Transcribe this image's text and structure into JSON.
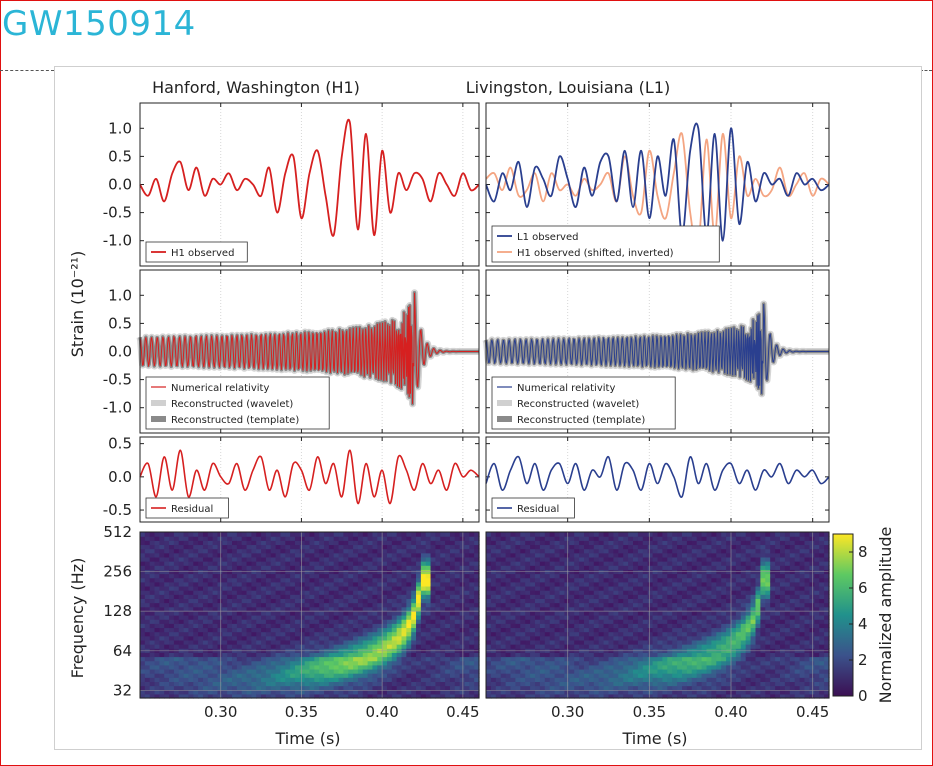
{
  "page": {
    "title": "GW150914"
  },
  "figure": {
    "columns": [
      "Hanford, Washington (H1)",
      "Livingston, Louisiana (L1)"
    ],
    "ylabel_strain": "Strain (10⁻²¹)",
    "ylabel_freq": "Frequency (Hz)",
    "xlabel": "Time (s)",
    "colorbar_label": "Normalized amplitude",
    "colors": {
      "h1": "#d62020",
      "l1": "#2a3f8f",
      "h1_shifted": "#f4a582",
      "wavelet_band": "#d0d0d0",
      "template_band": "#8a8a8a"
    }
  },
  "chart_data": [
    {
      "type": "line",
      "panel": "H1 strain",
      "xlim": [
        0.25,
        0.46
      ],
      "ylim": [
        -1.45,
        1.45
      ],
      "yticks": [
        1.0,
        0.5,
        0.0,
        -0.5,
        -1.0
      ],
      "yticklabels": [
        "1.0",
        "0.5",
        "0.0",
        "-0.5",
        "-1.0"
      ],
      "legend": {
        "loc": "lower left",
        "entries": [
          "H1 observed"
        ]
      },
      "series": [
        {
          "name": "H1 observed",
          "color": "#d62020",
          "x": [
            0.25,
            0.255,
            0.26,
            0.265,
            0.27,
            0.275,
            0.28,
            0.285,
            0.29,
            0.295,
            0.3,
            0.305,
            0.31,
            0.315,
            0.32,
            0.325,
            0.33,
            0.335,
            0.34,
            0.345,
            0.35,
            0.355,
            0.36,
            0.365,
            0.37,
            0.375,
            0.38,
            0.385,
            0.39,
            0.395,
            0.4,
            0.405,
            0.41,
            0.415,
            0.42,
            0.425,
            0.43,
            0.435,
            0.44,
            0.445,
            0.45,
            0.455,
            0.46
          ],
          "y": [
            0.0,
            -0.2,
            0.1,
            -0.3,
            0.2,
            0.4,
            -0.1,
            0.3,
            -0.2,
            0.1,
            0.0,
            0.2,
            -0.1,
            0.1,
            0.0,
            -0.2,
            0.3,
            -0.5,
            0.2,
            0.5,
            -0.6,
            0.2,
            0.6,
            -0.2,
            -0.9,
            0.5,
            1.1,
            -0.8,
            0.9,
            -0.9,
            0.6,
            -0.5,
            0.2,
            -0.1,
            0.2,
            0.1,
            -0.3,
            0.2,
            0.0,
            -0.2,
            0.2,
            -0.1,
            0.0
          ]
        }
      ]
    },
    {
      "type": "line",
      "panel": "L1 strain",
      "xlim": [
        0.25,
        0.46
      ],
      "ylim": [
        -1.45,
        1.45
      ],
      "legend": {
        "loc": "lower left",
        "entries": [
          "L1 observed",
          "H1 observed (shifted, inverted)"
        ]
      },
      "series": [
        {
          "name": "L1 observed",
          "color": "#2a3f8f",
          "x": [
            0.25,
            0.255,
            0.26,
            0.265,
            0.27,
            0.275,
            0.28,
            0.285,
            0.29,
            0.295,
            0.3,
            0.305,
            0.31,
            0.315,
            0.32,
            0.325,
            0.33,
            0.335,
            0.34,
            0.345,
            0.35,
            0.355,
            0.36,
            0.365,
            0.37,
            0.375,
            0.38,
            0.385,
            0.39,
            0.395,
            0.4,
            0.405,
            0.41,
            0.415,
            0.42,
            0.425,
            0.43,
            0.435,
            0.44,
            0.445,
            0.45,
            0.455,
            0.46
          ],
          "y": [
            0.0,
            -0.3,
            0.2,
            -0.1,
            0.4,
            -0.4,
            0.3,
            0.1,
            -0.2,
            0.5,
            0.1,
            -0.4,
            0.3,
            -0.2,
            0.4,
            0.5,
            -0.3,
            0.6,
            -0.4,
            0.6,
            -0.6,
            0.5,
            -0.2,
            0.8,
            -0.9,
            0.6,
            1.0,
            -0.9,
            0.9,
            -1.0,
            1.0,
            -0.7,
            0.4,
            -0.3,
            0.2,
            0.0,
            0.1,
            -0.2,
            0.2,
            0.0,
            0.1,
            -0.1,
            0.0
          ]
        },
        {
          "name": "H1 observed (shifted, inverted)",
          "color": "#f4a582",
          "x": [
            0.25,
            0.255,
            0.26,
            0.265,
            0.27,
            0.275,
            0.28,
            0.285,
            0.29,
            0.295,
            0.3,
            0.305,
            0.31,
            0.315,
            0.32,
            0.325,
            0.33,
            0.335,
            0.34,
            0.345,
            0.35,
            0.355,
            0.36,
            0.365,
            0.37,
            0.375,
            0.38,
            0.385,
            0.39,
            0.395,
            0.4,
            0.405,
            0.41,
            0.415,
            0.42,
            0.425,
            0.43,
            0.435,
            0.44,
            0.445,
            0.45,
            0.455,
            0.46
          ],
          "y": [
            0.1,
            0.2,
            -0.1,
            0.3,
            -0.2,
            -0.1,
            0.2,
            -0.3,
            0.2,
            -0.1,
            0.0,
            -0.2,
            0.1,
            -0.1,
            0.0,
            0.2,
            -0.3,
            0.5,
            -0.2,
            -0.5,
            0.6,
            -0.2,
            -0.6,
            0.2,
            0.9,
            -0.5,
            -1.1,
            0.8,
            -0.9,
            0.9,
            -0.6,
            0.5,
            -0.2,
            0.1,
            -0.2,
            -0.1,
            0.3,
            -0.2,
            0.0,
            0.2,
            -0.2,
            0.1,
            0.0
          ]
        }
      ]
    },
    {
      "type": "line",
      "panel": "H1 reconstruction",
      "xlim": [
        0.25,
        0.46
      ],
      "ylim": [
        -1.45,
        1.45
      ],
      "yticks": [
        1.0,
        0.5,
        0.0,
        -0.5,
        -1.0
      ],
      "yticklabels": [
        "1.0",
        "0.5",
        "0.0",
        "-0.5",
        "-1.0"
      ],
      "legend": {
        "loc": "lower left",
        "entries": [
          "Numerical relativity",
          "Reconstructed (wavelet)",
          "Reconstructed (template)"
        ]
      },
      "chirp": {
        "t_merger": 0.42,
        "f_start": 35,
        "f_end": 250,
        "peak_amplitude": 1.05
      }
    },
    {
      "type": "line",
      "panel": "L1 reconstruction",
      "xlim": [
        0.25,
        0.46
      ],
      "ylim": [
        -1.45,
        1.45
      ],
      "legend": {
        "loc": "lower left",
        "entries": [
          "Numerical relativity",
          "Reconstructed (wavelet)",
          "Reconstructed (template)"
        ]
      },
      "chirp": {
        "t_merger": 0.42,
        "f_start": 35,
        "f_end": 250,
        "peak_amplitude": 0.85
      }
    },
    {
      "type": "line",
      "panel": "H1 residual",
      "xlim": [
        0.25,
        0.46
      ],
      "ylim": [
        -0.68,
        0.6
      ],
      "yticks": [
        0.5,
        0.0,
        -0.5
      ],
      "yticklabels": [
        "0.5",
        "0.0",
        "-0.5"
      ],
      "legend": {
        "loc": "lower left",
        "entries": [
          "Residual"
        ]
      },
      "series": [
        {
          "name": "Residual",
          "color": "#d62020",
          "x": [
            0.25,
            0.255,
            0.26,
            0.265,
            0.27,
            0.275,
            0.28,
            0.285,
            0.29,
            0.295,
            0.3,
            0.305,
            0.31,
            0.315,
            0.32,
            0.325,
            0.33,
            0.335,
            0.34,
            0.345,
            0.35,
            0.355,
            0.36,
            0.365,
            0.37,
            0.375,
            0.38,
            0.385,
            0.39,
            0.395,
            0.4,
            0.405,
            0.41,
            0.415,
            0.42,
            0.425,
            0.43,
            0.435,
            0.44,
            0.445,
            0.45,
            0.455,
            0.46
          ],
          "y": [
            0.0,
            0.2,
            -0.3,
            0.3,
            -0.2,
            0.4,
            -0.3,
            0.1,
            -0.2,
            0.2,
            0.0,
            -0.1,
            0.2,
            -0.2,
            0.1,
            0.3,
            -0.2,
            0.1,
            -0.3,
            0.2,
            0.1,
            -0.2,
            0.3,
            -0.1,
            0.2,
            -0.3,
            0.4,
            -0.4,
            0.2,
            -0.3,
            0.1,
            -0.4,
            0.3,
            0.1,
            -0.2,
            0.2,
            -0.1,
            0.1,
            -0.2,
            0.2,
            0.0,
            0.1,
            0.0
          ]
        }
      ]
    },
    {
      "type": "line",
      "panel": "L1 residual",
      "xlim": [
        0.25,
        0.46
      ],
      "ylim": [
        -0.68,
        0.6
      ],
      "legend": {
        "loc": "lower left",
        "entries": [
          "Residual"
        ]
      },
      "series": [
        {
          "name": "Residual",
          "color": "#2a3f8f",
          "x": [
            0.25,
            0.255,
            0.26,
            0.265,
            0.27,
            0.275,
            0.28,
            0.285,
            0.29,
            0.295,
            0.3,
            0.305,
            0.31,
            0.315,
            0.32,
            0.325,
            0.33,
            0.335,
            0.34,
            0.345,
            0.35,
            0.355,
            0.36,
            0.365,
            0.37,
            0.375,
            0.38,
            0.385,
            0.39,
            0.395,
            0.4,
            0.405,
            0.41,
            0.415,
            0.42,
            0.425,
            0.43,
            0.435,
            0.44,
            0.445,
            0.45,
            0.455,
            0.46
          ],
          "y": [
            -0.1,
            0.2,
            -0.2,
            0.1,
            0.3,
            -0.1,
            0.2,
            -0.2,
            0.1,
            0.2,
            -0.1,
            0.2,
            -0.2,
            0.1,
            0.0,
            0.3,
            -0.2,
            0.2,
            0.1,
            -0.2,
            0.2,
            -0.1,
            0.2,
            0.0,
            -0.3,
            0.3,
            -0.1,
            0.2,
            -0.2,
            0.1,
            0.2,
            -0.1,
            0.1,
            -0.2,
            0.1,
            0.0,
            0.2,
            -0.1,
            0.1,
            0.0,
            0.1,
            -0.1,
            0.0
          ]
        }
      ]
    },
    {
      "type": "heatmap",
      "panel": "H1 spectrogram",
      "xlim": [
        0.25,
        0.46
      ],
      "ylim_hz": [
        28,
        512
      ],
      "yscale": "log",
      "yticks": [
        512,
        256,
        128,
        64,
        32
      ],
      "yticklabels": [
        "512",
        "256",
        "128",
        "64",
        "32"
      ],
      "xticks": [
        0.3,
        0.35,
        0.4,
        0.45
      ],
      "xticklabels": [
        "0.30",
        "0.35",
        "0.40",
        "0.45"
      ],
      "track": {
        "t_merger": 0.425,
        "f_start": 35,
        "f_end": 250,
        "peak": 8.5
      }
    },
    {
      "type": "heatmap",
      "panel": "L1 spectrogram",
      "xlim": [
        0.25,
        0.46
      ],
      "ylim_hz": [
        28,
        512
      ],
      "yscale": "log",
      "xticks": [
        0.3,
        0.35,
        0.4,
        0.45
      ],
      "xticklabels": [
        "0.30",
        "0.35",
        "0.40",
        "0.45"
      ],
      "track": {
        "t_merger": 0.42,
        "f_start": 35,
        "f_end": 250,
        "peak": 6.0
      }
    },
    {
      "type": "colorbar",
      "label": "Normalized amplitude",
      "range": [
        0,
        9
      ],
      "ticks": [
        0,
        2,
        4,
        6,
        8
      ],
      "ticklabels": [
        "0",
        "2",
        "4",
        "6",
        "8"
      ]
    }
  ]
}
